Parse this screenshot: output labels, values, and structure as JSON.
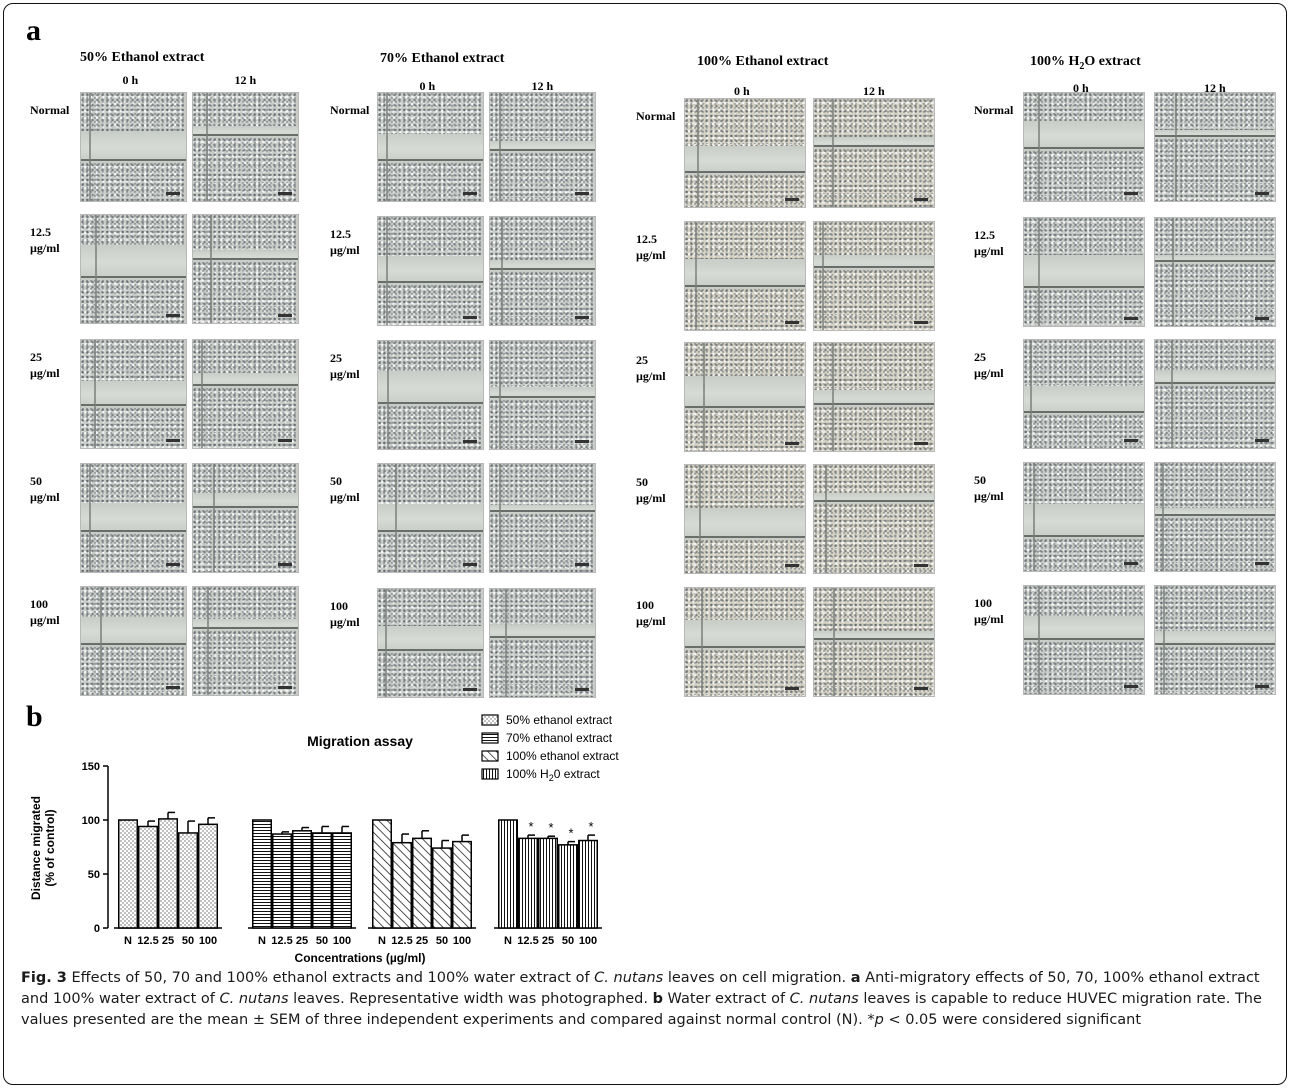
{
  "panel_a": {
    "letter": "a",
    "time_labels": [
      "0 h",
      "12 h"
    ],
    "row_labels": [
      {
        "line1": "Normal",
        "line2": ""
      },
      {
        "line1": "12.5",
        "line2": "µg/ml"
      },
      {
        "line1": "25",
        "line2": "µg/ml"
      },
      {
        "line1": "50",
        "line2": "µg/ml"
      },
      {
        "line1": "100",
        "line2": "µg/ml"
      }
    ],
    "columns": [
      {
        "title": "50% Ethanol extract"
      },
      {
        "title": "70% Ethanol extract"
      },
      {
        "title": "100% Ethanol extract"
      },
      {
        "title_pre": "100% H",
        "title_sub": "2",
        "title_post": "O extract"
      }
    ]
  },
  "panel_b": {
    "letter": "b",
    "chart_data": {
      "type": "bar",
      "title": "Migration assay",
      "ylabel_line1": "Distance migrated",
      "ylabel_line2": "(% of control)",
      "xlabel": "Concentrations (µg/ml)",
      "ylim": [
        0,
        150
      ],
      "yticks": [
        0,
        50,
        100,
        150
      ],
      "grid": false,
      "legend_position": "top-right",
      "categories": [
        "N",
        "12.5",
        "25",
        "50",
        "100"
      ],
      "series": [
        {
          "name": "50% ethanol extract",
          "pattern": "dots",
          "values": [
            100,
            94,
            101,
            88,
            96
          ],
          "errors": [
            0,
            5,
            6,
            11,
            6
          ],
          "significant": [
            false,
            false,
            false,
            false,
            false
          ]
        },
        {
          "name": "70% ethanol extract",
          "pattern": "horizontal",
          "values": [
            100,
            87,
            90,
            88,
            88
          ],
          "errors": [
            0,
            2,
            3,
            6,
            6
          ],
          "significant": [
            false,
            false,
            false,
            false,
            false
          ]
        },
        {
          "name": "100% ethanol extract",
          "pattern": "diagonal",
          "values": [
            100,
            79,
            83,
            74,
            80
          ],
          "errors": [
            0,
            8,
            7,
            7,
            6
          ],
          "significant": [
            false,
            false,
            false,
            false,
            false
          ]
        },
        {
          "name_pre": "100% H",
          "name_sub": "2",
          "name_post": "0 extract",
          "pattern": "vertical",
          "values": [
            100,
            83,
            83,
            77,
            81
          ],
          "errors": [
            0,
            3,
            2,
            3,
            5
          ],
          "significant": [
            false,
            true,
            true,
            true,
            true
          ]
        }
      ],
      "significance_marker": "*"
    }
  },
  "caption": {
    "fig_label": "Fig. 3",
    "part1": " Effects of 50, 70 and 100% ethanol extracts and 100% water extract of ",
    "species1": "C. nutans",
    "part2": " leaves on cell migration. ",
    "a_label": "a",
    "part3": " Anti-migratory effects of 50, 70, 100% ethanol extract and 100% water extract of ",
    "species2": "C. nutans",
    "part4": " leaves. Representative width was photographed. ",
    "b_label": "b",
    "part5": " Water extract of ",
    "species3": "C. nutans",
    "part6": " leaves is capable to reduce HUVEC migration rate. The values presented are the mean ± SEM of three independent experiments and compared against normal control (N). *",
    "p_symbol": "p",
    "part7": " < 0.05 were considered significant"
  }
}
